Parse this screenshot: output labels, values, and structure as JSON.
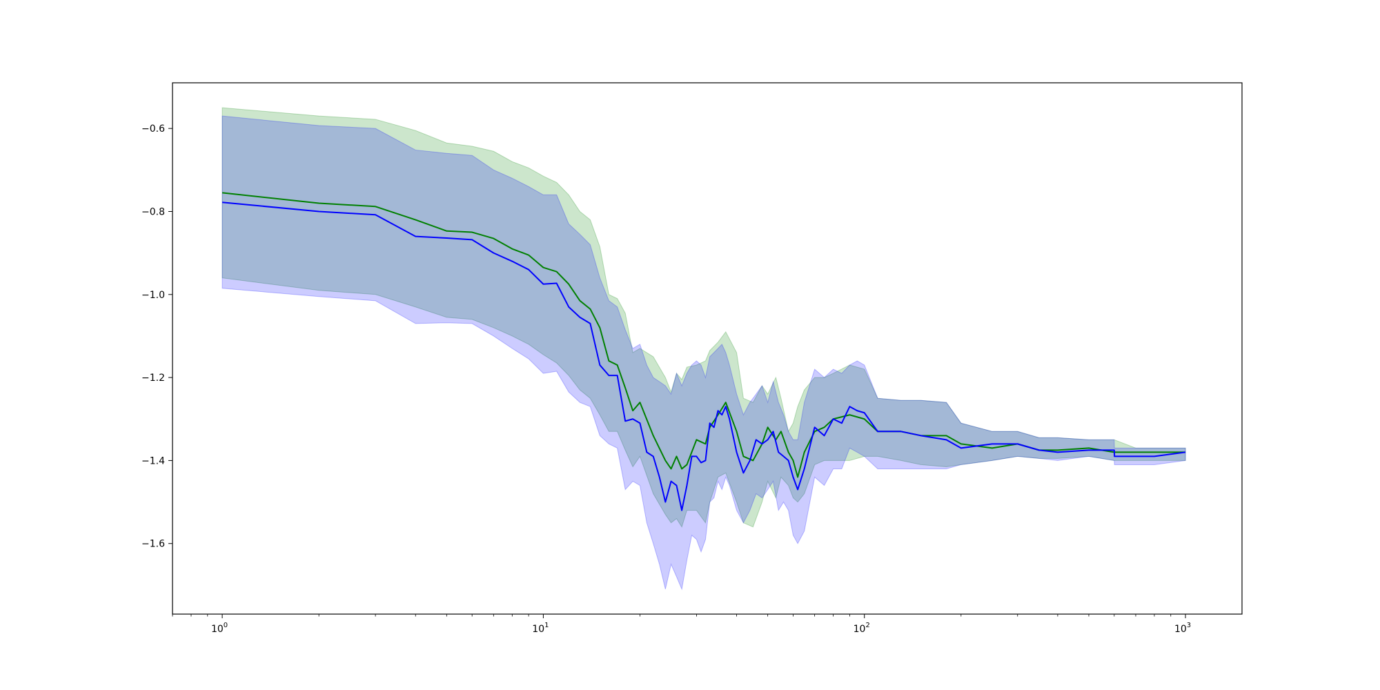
{
  "chart_data": {
    "type": "line",
    "title": "",
    "xlabel": "",
    "ylabel": "",
    "xscale": "log",
    "xlim": [
      0.7,
      1500
    ],
    "ylim": [
      -1.77,
      -0.49
    ],
    "grid": false,
    "x_ticks": [
      {
        "base": "10",
        "exp": "0",
        "value": 1
      },
      {
        "base": "10",
        "exp": "1",
        "value": 10
      },
      {
        "base": "10",
        "exp": "2",
        "value": 100
      },
      {
        "base": "10",
        "exp": "3",
        "value": 1000
      }
    ],
    "y_ticks": [
      {
        "label": "−0.6",
        "value": -0.6
      },
      {
        "label": "−0.8",
        "value": -0.8
      },
      {
        "label": "−1.0",
        "value": -1.0
      },
      {
        "label": "−1.2",
        "value": -1.2
      },
      {
        "label": "−1.4",
        "value": -1.4
      },
      {
        "label": "−1.6",
        "value": -1.6
      }
    ],
    "series": [
      {
        "color": "#008000",
        "band_color": "#008000",
        "x": [
          1,
          2,
          3,
          4,
          5,
          6,
          7,
          8,
          9,
          10,
          11,
          12,
          13,
          14,
          15,
          16,
          17,
          18,
          19,
          20,
          22,
          24,
          25,
          26,
          27,
          28,
          30,
          32,
          33,
          35,
          37,
          40,
          42,
          45,
          48,
          50,
          53,
          55,
          58,
          60,
          62,
          65,
          70,
          75,
          80,
          90,
          100,
          110,
          130,
          150,
          180,
          200,
          250,
          300,
          350,
          400,
          500,
          600,
          700,
          800,
          1000
        ],
        "y": [
          -0.755,
          -0.78,
          -0.788,
          -0.82,
          -0.847,
          -0.85,
          -0.865,
          -0.89,
          -0.905,
          -0.935,
          -0.945,
          -0.975,
          -1.015,
          -1.035,
          -1.08,
          -1.16,
          -1.17,
          -1.225,
          -1.28,
          -1.26,
          -1.34,
          -1.4,
          -1.42,
          -1.39,
          -1.42,
          -1.41,
          -1.35,
          -1.36,
          -1.32,
          -1.29,
          -1.26,
          -1.33,
          -1.39,
          -1.4,
          -1.36,
          -1.32,
          -1.35,
          -1.33,
          -1.38,
          -1.4,
          -1.44,
          -1.38,
          -1.33,
          -1.32,
          -1.3,
          -1.29,
          -1.3,
          -1.33,
          -1.33,
          -1.34,
          -1.34,
          -1.36,
          -1.37,
          -1.36,
          -1.375,
          -1.375,
          -1.37,
          -1.38,
          -1.38,
          -1.38,
          -1.38
        ],
        "upper": [
          -0.55,
          -0.57,
          -0.578,
          -0.605,
          -0.635,
          -0.643,
          -0.655,
          -0.68,
          -0.695,
          -0.715,
          -0.73,
          -0.76,
          -0.8,
          -0.82,
          -0.885,
          -1.0,
          -1.01,
          -1.045,
          -1.14,
          -1.13,
          -1.15,
          -1.2,
          -1.235,
          -1.19,
          -1.205,
          -1.175,
          -1.17,
          -1.16,
          -1.135,
          -1.115,
          -1.09,
          -1.14,
          -1.25,
          -1.26,
          -1.22,
          -1.24,
          -1.2,
          -1.25,
          -1.33,
          -1.31,
          -1.27,
          -1.23,
          -1.2,
          -1.2,
          -1.19,
          -1.17,
          -1.18,
          -1.25,
          -1.255,
          -1.255,
          -1.26,
          -1.31,
          -1.33,
          -1.33,
          -1.345,
          -1.345,
          -1.35,
          -1.35,
          -1.37,
          -1.37,
          -1.37
        ],
        "lower": [
          -0.96,
          -0.99,
          -1.0,
          -1.03,
          -1.055,
          -1.06,
          -1.08,
          -1.1,
          -1.12,
          -1.145,
          -1.165,
          -1.195,
          -1.23,
          -1.25,
          -1.29,
          -1.33,
          -1.33,
          -1.375,
          -1.415,
          -1.39,
          -1.48,
          -1.53,
          -1.55,
          -1.54,
          -1.56,
          -1.52,
          -1.52,
          -1.55,
          -1.5,
          -1.44,
          -1.43,
          -1.5,
          -1.55,
          -1.56,
          -1.5,
          -1.45,
          -1.49,
          -1.44,
          -1.46,
          -1.49,
          -1.5,
          -1.48,
          -1.41,
          -1.4,
          -1.4,
          -1.4,
          -1.39,
          -1.39,
          -1.4,
          -1.41,
          -1.415,
          -1.41,
          -1.4,
          -1.39,
          -1.395,
          -1.395,
          -1.39,
          -1.4,
          -1.4,
          -1.4,
          -1.4
        ]
      },
      {
        "color": "#0000ff",
        "band_color": "#0000ff",
        "x": [
          1,
          2,
          3,
          4,
          5,
          6,
          7,
          8,
          9,
          10,
          11,
          12,
          13,
          14,
          15,
          16,
          17,
          18,
          19,
          20,
          21,
          22,
          23,
          24,
          25,
          26,
          27,
          28,
          29,
          30,
          31,
          32,
          33,
          34,
          35,
          36,
          37,
          38,
          40,
          42,
          44,
          46,
          48,
          50,
          52,
          54,
          56,
          58,
          60,
          62,
          65,
          70,
          75,
          80,
          85,
          90,
          95,
          100,
          110,
          130,
          150,
          180,
          200,
          250,
          300,
          350,
          400,
          500,
          600,
          601,
          700,
          800,
          1000
        ],
        "y": [
          -0.778,
          -0.8,
          -0.808,
          -0.86,
          -0.864,
          -0.868,
          -0.9,
          -0.92,
          -0.94,
          -0.975,
          -0.973,
          -1.03,
          -1.055,
          -1.07,
          -1.17,
          -1.195,
          -1.195,
          -1.305,
          -1.3,
          -1.31,
          -1.38,
          -1.39,
          -1.44,
          -1.5,
          -1.45,
          -1.46,
          -1.52,
          -1.46,
          -1.39,
          -1.39,
          -1.405,
          -1.4,
          -1.31,
          -1.32,
          -1.28,
          -1.29,
          -1.27,
          -1.3,
          -1.38,
          -1.43,
          -1.4,
          -1.35,
          -1.36,
          -1.35,
          -1.33,
          -1.38,
          -1.39,
          -1.4,
          -1.44,
          -1.47,
          -1.42,
          -1.32,
          -1.34,
          -1.3,
          -1.31,
          -1.27,
          -1.28,
          -1.285,
          -1.33,
          -1.33,
          -1.34,
          -1.35,
          -1.37,
          -1.36,
          -1.36,
          -1.375,
          -1.38,
          -1.375,
          -1.375,
          -1.39,
          -1.39,
          -1.39,
          -1.38
        ],
        "upper": [
          -0.57,
          -0.593,
          -0.6,
          -0.652,
          -0.66,
          -0.665,
          -0.7,
          -0.72,
          -0.74,
          -0.76,
          -0.76,
          -0.83,
          -0.855,
          -0.88,
          -0.96,
          -1.015,
          -1.03,
          -1.085,
          -1.13,
          -1.12,
          -1.17,
          -1.2,
          -1.21,
          -1.22,
          -1.24,
          -1.19,
          -1.22,
          -1.19,
          -1.17,
          -1.16,
          -1.17,
          -1.2,
          -1.15,
          -1.14,
          -1.13,
          -1.12,
          -1.14,
          -1.17,
          -1.24,
          -1.29,
          -1.26,
          -1.24,
          -1.22,
          -1.26,
          -1.21,
          -1.26,
          -1.29,
          -1.33,
          -1.35,
          -1.35,
          -1.26,
          -1.18,
          -1.2,
          -1.18,
          -1.19,
          -1.17,
          -1.16,
          -1.17,
          -1.25,
          -1.255,
          -1.255,
          -1.26,
          -1.31,
          -1.33,
          -1.33,
          -1.345,
          -1.345,
          -1.35,
          -1.35,
          -1.37,
          -1.37,
          -1.37,
          -1.37
        ],
        "lower": [
          -0.985,
          -1.005,
          -1.015,
          -1.07,
          -1.068,
          -1.07,
          -1.1,
          -1.13,
          -1.155,
          -1.19,
          -1.185,
          -1.235,
          -1.26,
          -1.27,
          -1.34,
          -1.36,
          -1.37,
          -1.47,
          -1.45,
          -1.46,
          -1.55,
          -1.6,
          -1.65,
          -1.71,
          -1.65,
          -1.68,
          -1.71,
          -1.64,
          -1.58,
          -1.59,
          -1.62,
          -1.59,
          -1.5,
          -1.49,
          -1.45,
          -1.47,
          -1.44,
          -1.46,
          -1.52,
          -1.55,
          -1.52,
          -1.48,
          -1.49,
          -1.47,
          -1.45,
          -1.52,
          -1.5,
          -1.52,
          -1.58,
          -1.6,
          -1.57,
          -1.44,
          -1.46,
          -1.42,
          -1.42,
          -1.37,
          -1.38,
          -1.39,
          -1.42,
          -1.42,
          -1.42,
          -1.42,
          -1.41,
          -1.4,
          -1.39,
          -1.395,
          -1.4,
          -1.39,
          -1.4,
          -1.41,
          -1.41,
          -1.41,
          -1.4
        ]
      }
    ]
  }
}
